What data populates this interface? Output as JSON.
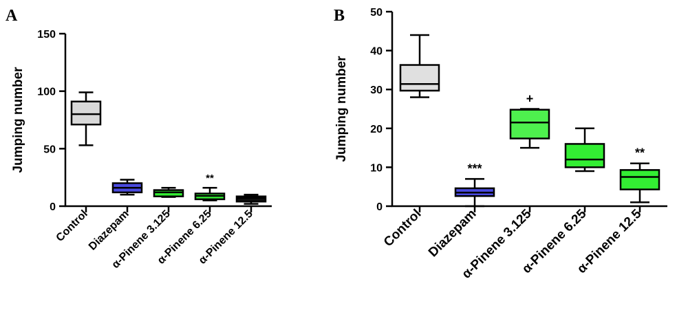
{
  "chart_data": [
    {
      "panel": "A",
      "type": "box",
      "ylabel": "Jumping number",
      "ylim": [
        0,
        150
      ],
      "yticks": [
        0,
        50,
        100,
        150
      ],
      "categories": [
        "Control",
        "Diazepam",
        "α-Pinene 3.125",
        "α-Pinene 6.25",
        "α-Pinene 12.5"
      ],
      "boxes": [
        {
          "category": "Control",
          "min": 53,
          "q1": 71,
          "median": 80,
          "q3": 91,
          "max": 99,
          "color": "#d9d9d9",
          "sig": ""
        },
        {
          "category": "Diazepam",
          "min": 10,
          "q1": 12,
          "median": 16,
          "q3": 20,
          "max": 23,
          "color": "#4a4adf",
          "sig": ""
        },
        {
          "category": "α-Pinene 3.125",
          "min": 8,
          "q1": 8.5,
          "median": 12,
          "q3": 14,
          "max": 16,
          "color": "#33ee33",
          "sig": ""
        },
        {
          "category": "α-Pinene 6.25",
          "min": 5,
          "q1": 6,
          "median": 9,
          "q3": 11,
          "max": 16,
          "color": "#33ee33",
          "sig": "**"
        },
        {
          "category": "α-Pinene 12.5",
          "min": 2,
          "q1": 4,
          "median": 7,
          "q3": 8.5,
          "max": 10,
          "color": "#111111",
          "sig": ""
        }
      ]
    },
    {
      "panel": "B",
      "type": "box",
      "ylabel": "Jumping number",
      "ylim": [
        0,
        50
      ],
      "yticks": [
        0,
        10,
        20,
        30,
        40,
        50
      ],
      "categories": [
        "Control",
        "Diazepam",
        "α-Pinene 3.125",
        "α-Pinene 6.25",
        "α-Pinene 12.5"
      ],
      "boxes": [
        {
          "category": "Control",
          "min": 28,
          "q1": 29.7,
          "median": 31.4,
          "q3": 36.3,
          "max": 44,
          "color": "#e0e0e0",
          "sig": ""
        },
        {
          "category": "Diazepam",
          "min": 0,
          "q1": 2.6,
          "median": 3.5,
          "q3": 4.6,
          "max": 7,
          "color": "#4a4adf",
          "sig": "***"
        },
        {
          "category": "α-Pinene 3.125",
          "min": 15,
          "q1": 17.4,
          "median": 21.5,
          "q3": 24.8,
          "max": 25,
          "color": "#4ef04e",
          "sig": "+"
        },
        {
          "category": "α-Pinene 6.25",
          "min": 9,
          "q1": 10,
          "median": 12,
          "q3": 16,
          "max": 20,
          "color": "#33ee33",
          "sig": ""
        },
        {
          "category": "α-Pinene 12.5",
          "min": 1,
          "q1": 4.3,
          "median": 7.5,
          "q3": 9.3,
          "max": 11,
          "color": "#33ee33",
          "sig": "**"
        }
      ]
    }
  ]
}
